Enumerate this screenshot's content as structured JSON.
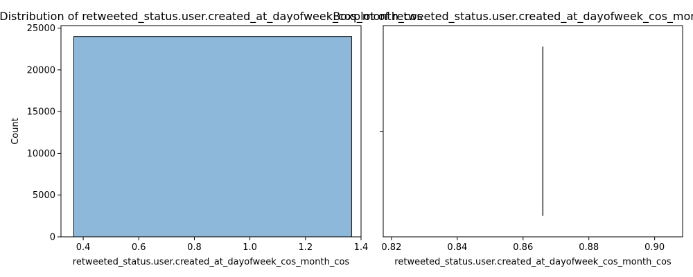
{
  "chart_data": [
    {
      "type": "bar",
      "title": "Distribution of retweeted_status.user.created_at_dayofweek_cos_month_cos",
      "xlabel": "retweeted_status.user.created_at_dayofweek_cos_month_cos",
      "ylabel": "Count",
      "xlim": [
        0.32,
        1.4
      ],
      "ylim": [
        0,
        25300
      ],
      "xticks": [
        "0.4",
        "0.6",
        "0.8",
        "1.0",
        "1.2",
        "1.4"
      ],
      "yticks": [
        "0",
        "5000",
        "10000",
        "15000",
        "20000",
        "25000"
      ],
      "bins": [
        {
          "x0": 0.366,
          "x1": 1.366,
          "count": 24000
        }
      ],
      "bar_color": "#8db8da",
      "edge_color": "#000000",
      "grid": false
    },
    {
      "type": "box",
      "title": "Boxplot of retweeted_status.user.created_at_dayofweek_cos_month_cos",
      "xlabel": "retweeted_status.user.created_at_dayofweek_cos_month_cos",
      "xlim": [
        0.8175,
        0.9085
      ],
      "xticks": [
        "0.82",
        "0.84",
        "0.86",
        "0.88",
        "0.90"
      ],
      "values": {
        "min": 0.866,
        "q1": 0.866,
        "median": 0.866,
        "q3": 0.866,
        "max": 0.866
      },
      "line_color": "#3f3f3f",
      "grid": false
    }
  ]
}
